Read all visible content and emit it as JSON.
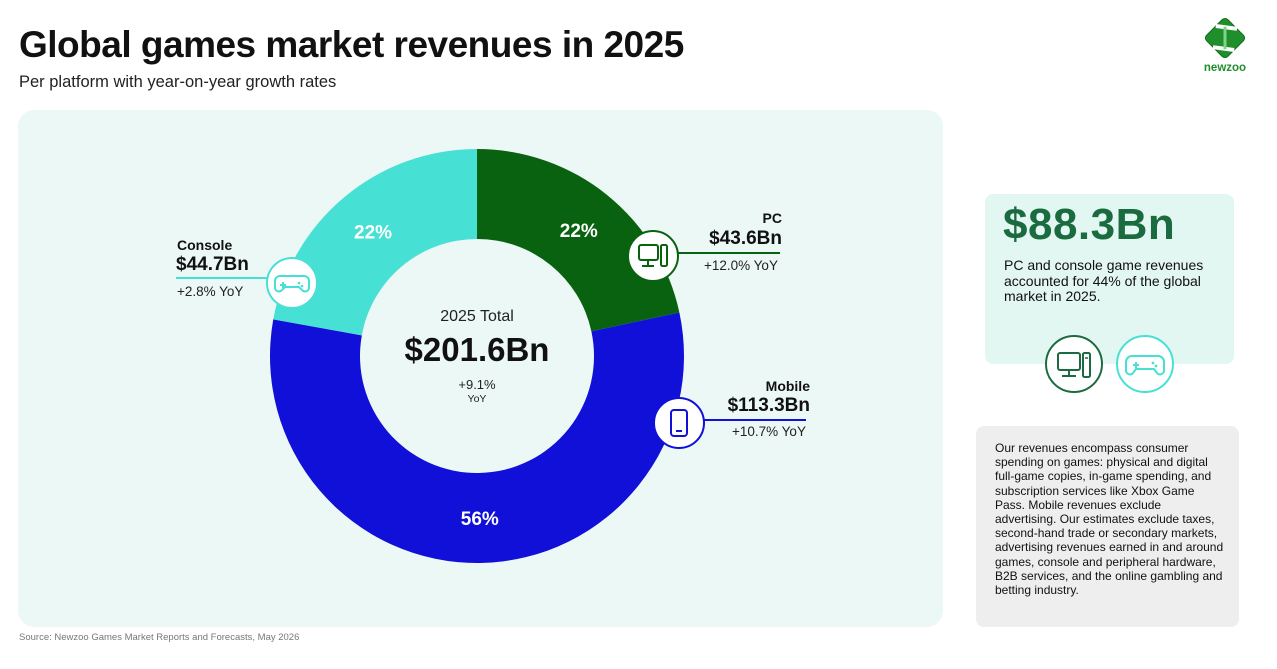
{
  "header": {
    "title": "Global games market revenues in 2025",
    "subtitle": "Per platform with year-on-year growth rates",
    "logo_text": "newzoo"
  },
  "colors": {
    "mobile": "#1010d8",
    "pc": "#09620f",
    "console": "#46e0d4",
    "brand": "#1f8f2c",
    "stat_value": "#1a6b3f"
  },
  "center": {
    "label": "2025 Total",
    "total": "$201.6Bn",
    "yoy": "+9.1%",
    "yoy_unit": "YoY"
  },
  "segments": {
    "pc": {
      "name": "PC",
      "value": "$43.6Bn",
      "yoy": "+12.0% YoY",
      "pct": "22%",
      "icon": "pc-icon"
    },
    "console": {
      "name": "Console",
      "value": "$44.7Bn",
      "yoy": "+2.8% YoY",
      "pct": "22%",
      "icon": "gamepad-icon"
    },
    "mobile": {
      "name": "Mobile",
      "value": "$113.3Bn",
      "yoy": "+10.7% YoY",
      "pct": "56%",
      "icon": "smartphone-icon"
    }
  },
  "stat": {
    "value": "$88.3Bn",
    "text": "PC and console game revenues accounted for 44% of the global market in 2025.",
    "icons": [
      "pc-icon",
      "gamepad-icon"
    ]
  },
  "note": {
    "text": "Our revenues encompass consumer spending on games: physical and digital full-game copies, in-game spending, and subscription services like Xbox Game Pass. Mobile revenues exclude advertising. Our estimates exclude taxes, second-hand trade or secondary markets, advertising revenues earned in and around games, console and peripheral hardware, B2B services, and the online gambling and betting industry."
  },
  "source": "Source: Newzoo Games Market Reports and Forecasts, May 2026",
  "chart_data": {
    "type": "pie",
    "title": "Global games market revenues in 2025",
    "subtitle": "Per platform with year-on-year growth rates",
    "categories": [
      "PC",
      "Mobile",
      "Console"
    ],
    "values": [
      43.6,
      113.3,
      44.7
    ],
    "shares_percent": [
      22,
      56,
      22
    ],
    "yoy_growth_percent": [
      12.0,
      10.7,
      2.8
    ],
    "unit": "USD billions",
    "total": 201.6,
    "total_yoy_percent": 9.1,
    "donut": true,
    "legend": "callout labels beside slices"
  }
}
